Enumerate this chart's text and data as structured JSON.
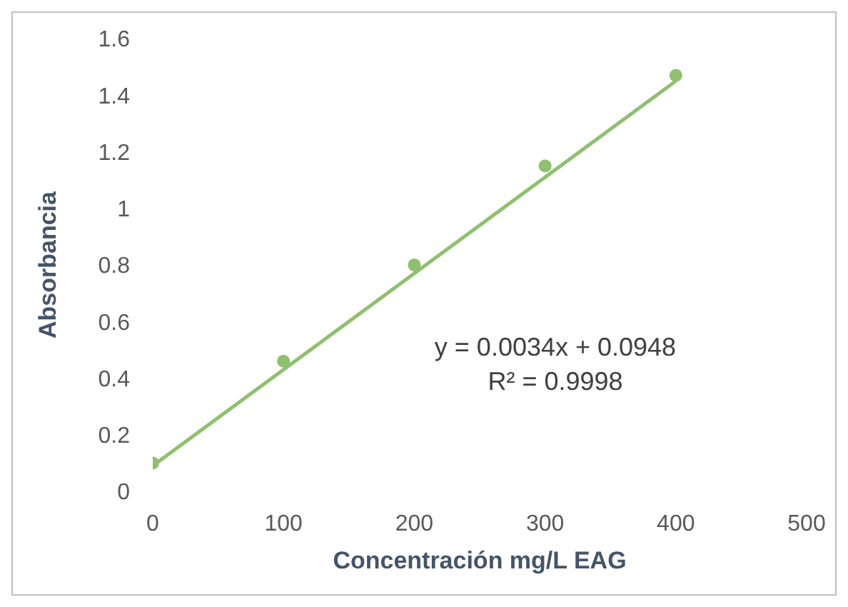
{
  "chart_data": {
    "type": "scatter",
    "xlabel": "Concentración mg/L EAG",
    "ylabel": "Absorbancia",
    "x": [
      0,
      100,
      200,
      300,
      400
    ],
    "series": [
      {
        "color": "#8fc06e",
        "marker": "circle",
        "values": [
          0.1,
          0.46,
          0.8,
          1.15,
          1.47
        ]
      },
      {
        "type": "line",
        "color": "#8fc06e",
        "marker": "none",
        "x": [
          0,
          400
        ],
        "values": [
          0.09,
          1.45
        ]
      }
    ],
    "xlim": [
      0,
      500
    ],
    "xticks": [
      0,
      100,
      200,
      300,
      400,
      500
    ],
    "ylim": [
      0,
      1.6
    ],
    "yticks": [
      0,
      0.2,
      0.4,
      0.6,
      0.8,
      1,
      1.2,
      1.4,
      1.6
    ],
    "annotations": [
      "y = 0.0034x + 0.0948",
      "R² = 0.9998"
    ]
  }
}
